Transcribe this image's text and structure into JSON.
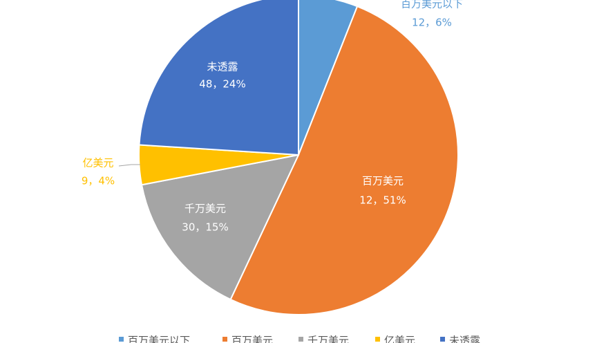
{
  "chart_data": {
    "type": "pie",
    "categories": [
      "百万美元以下",
      "百万美元",
      "千万美元",
      "亿美元",
      "未透露"
    ],
    "values": [
      6,
      51,
      15,
      4,
      24
    ],
    "value_labels": [
      "12，6%",
      "12，51%",
      "30，15%",
      "9，4%",
      "48，24%"
    ],
    "colors": [
      "#5b9bd5",
      "#ed7d31",
      "#a5a5a5",
      "#ffc000",
      "#4472c4"
    ],
    "legend": "bottom"
  }
}
